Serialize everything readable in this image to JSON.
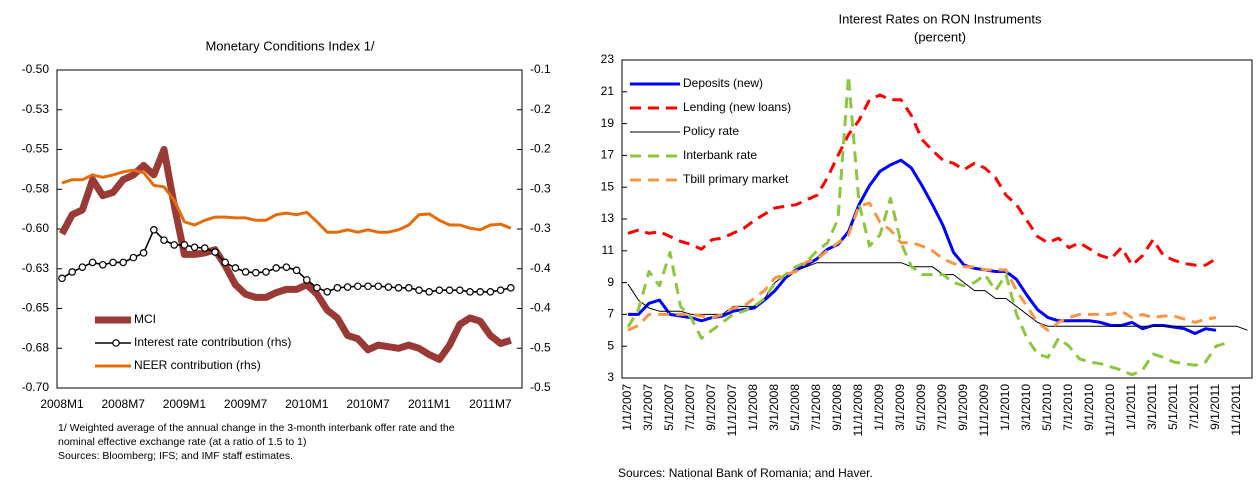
{
  "chart_data": [
    {
      "type": "line",
      "title": "Monetary Conditions Index 1/",
      "categories": [
        "2008M1",
        null,
        null,
        null,
        null,
        null,
        "2008M7",
        null,
        null,
        null,
        null,
        null,
        "2009M1",
        null,
        null,
        null,
        null,
        null,
        "2009M7",
        null,
        null,
        null,
        null,
        null,
        "2010M1",
        null,
        null,
        null,
        null,
        null,
        "2010M7",
        null,
        null,
        null,
        null,
        null,
        "2011M1",
        null,
        null,
        null,
        null,
        null,
        "2011M7",
        null,
        null
      ],
      "ylim": [
        -0.7,
        -0.5
      ],
      "yticks": [
        {
          "value": -0.7,
          "label": "-0.70"
        },
        {
          "value": -0.675,
          "label": "-0.68"
        },
        {
          "value": -0.65,
          "label": "-0.65"
        },
        {
          "value": -0.625,
          "label": "-0.63"
        },
        {
          "value": -0.6,
          "label": "-0.60"
        },
        {
          "value": -0.575,
          "label": "-0.58"
        },
        {
          "value": -0.55,
          "label": "-0.55"
        },
        {
          "value": -0.525,
          "label": "-0.53"
        },
        {
          "value": -0.5,
          "label": "-0.50"
        }
      ],
      "y2lim": [
        -0.5,
        -0.1
      ],
      "y2ticks": [
        -0.5,
        {
          "value": -0.45,
          "label": "-0.5"
        },
        -0.4,
        {
          "value": -0.35,
          "label": "-0.4"
        },
        -0.3,
        {
          "value": -0.25,
          "label": "-0.3"
        },
        -0.2,
        {
          "value": -0.15,
          "label": "-0.2"
        },
        -0.1
      ],
      "grid": false,
      "legend": "lower left",
      "series": [
        {
          "name": "MCI",
          "color": "#9a3a36",
          "style": "thick",
          "values": [
            -0.603,
            -0.591,
            -0.588,
            -0.569,
            -0.579,
            -0.577,
            -0.569,
            -0.566,
            -0.56,
            -0.566,
            -0.55,
            -0.585,
            -0.616,
            -0.616,
            -0.615,
            -0.613,
            -0.623,
            -0.635,
            -0.641,
            -0.643,
            -0.643,
            -0.64,
            -0.638,
            -0.638,
            -0.635,
            -0.641,
            -0.651,
            -0.656,
            -0.667,
            -0.669,
            -0.676,
            -0.673,
            -0.674,
            -0.675,
            -0.673,
            -0.675,
            -0.679,
            -0.682,
            -0.673,
            -0.66,
            -0.656,
            -0.658,
            -0.667,
            -0.672,
            -0.67
          ]
        },
        {
          "name": "Interest rate contribution (rhs)",
          "color": "#000000",
          "style": "markers",
          "axis": "y2",
          "values": [
            -0.362,
            -0.354,
            -0.348,
            -0.342,
            -0.345,
            -0.342,
            -0.342,
            -0.336,
            -0.33,
            -0.301,
            -0.314,
            -0.32,
            -0.32,
            -0.323,
            -0.324,
            -0.329,
            -0.342,
            -0.349,
            -0.354,
            -0.355,
            -0.354,
            -0.349,
            -0.348,
            -0.352,
            -0.364,
            -0.374,
            -0.379,
            -0.374,
            -0.373,
            -0.372,
            -0.372,
            -0.372,
            -0.373,
            -0.374,
            -0.374,
            -0.377,
            -0.379,
            -0.377,
            -0.377,
            -0.377,
            -0.379,
            -0.379,
            -0.379,
            -0.377,
            -0.374
          ]
        },
        {
          "name": "NEER contribution (rhs)",
          "color": "#e46c0a",
          "style": "solid",
          "axis": "y2",
          "values": [
            -0.242,
            -0.238,
            -0.238,
            -0.232,
            -0.235,
            -0.232,
            -0.228,
            -0.226,
            -0.229,
            -0.245,
            -0.247,
            -0.264,
            -0.291,
            -0.295,
            -0.289,
            -0.285,
            -0.285,
            -0.286,
            -0.286,
            -0.289,
            -0.289,
            -0.282,
            -0.28,
            -0.282,
            -0.279,
            -0.291,
            -0.304,
            -0.304,
            -0.301,
            -0.304,
            -0.301,
            -0.304,
            -0.304,
            -0.301,
            -0.295,
            -0.282,
            -0.281,
            -0.289,
            -0.295,
            -0.295,
            -0.299,
            -0.301,
            -0.295,
            -0.294,
            -0.299
          ]
        }
      ],
      "notes": [
        "1/  Weighted  average of the annual change in the 3-month interbank offer rate and the",
        "nominal effective exchange rate (at a ratio of 1.5 to 1)",
        "Sources: Bloomberg; IFS; and IMF staff estimates."
      ]
    },
    {
      "type": "line",
      "title": "Interest Rates on RON Instruments",
      "subtitle": "(percent)",
      "categories": [
        "1/1/2007",
        null,
        "3/1/2007",
        null,
        "5/1/2007",
        null,
        "7/1/2007",
        null,
        "9/1/2007",
        null,
        "11/1/2007",
        null,
        "1/1/2008",
        null,
        "3/1/2008",
        null,
        "5/1/2008",
        null,
        "7/1/2008",
        null,
        "9/1/2008",
        null,
        "11/1/2008",
        null,
        "1/1/2009",
        null,
        "3/1/2009",
        null,
        "5/1/2009",
        null,
        "7/1/2009",
        null,
        "9/1/2009",
        null,
        "11/1/2009",
        null,
        "1/1/2010",
        null,
        "3/1/2010",
        null,
        "5/1/2010",
        null,
        "7/1/2010",
        null,
        "9/1/2010",
        null,
        "11/1/2010",
        null,
        "1/1/2011",
        null,
        "3/1/2011",
        null,
        "5/1/2011",
        null,
        "7/1/2011",
        null,
        "9/1/2011",
        null,
        "11/1/2011",
        null
      ],
      "ylim": [
        3,
        23
      ],
      "yticks": [
        3,
        5,
        7,
        9,
        11,
        13,
        15,
        17,
        19,
        21,
        23
      ],
      "grid": false,
      "legend": "upper left",
      "series": [
        {
          "name": "Deposits (new)",
          "color": "#0000ff",
          "style": "solid",
          "values": [
            7.0,
            7.0,
            7.7,
            7.9,
            7.0,
            6.9,
            6.8,
            6.6,
            6.8,
            6.9,
            7.2,
            7.3,
            7.4,
            7.9,
            8.5,
            9.3,
            9.8,
            10.1,
            10.5,
            11.1,
            11.4,
            12.2,
            13.9,
            15.1,
            16.0,
            16.4,
            16.7,
            16.2,
            15.1,
            13.9,
            12.6,
            10.9,
            10.1,
            9.9,
            9.8,
            9.7,
            9.7,
            9.2,
            8.2,
            7.3,
            6.8,
            6.6,
            6.6,
            6.6,
            6.6,
            6.5,
            6.3,
            6.3,
            6.5,
            6.1,
            6.3,
            6.3,
            6.2,
            6.1,
            5.8,
            6.1,
            6.0,
            null,
            null,
            null
          ]
        },
        {
          "name": "Lending (new loans)",
          "color": "#ff0000",
          "style": "dashed",
          "values": [
            12.1,
            12.3,
            12.1,
            12.2,
            11.9,
            11.6,
            11.4,
            11.1,
            11.7,
            11.8,
            12.1,
            12.4,
            12.9,
            13.3,
            13.7,
            13.8,
            13.9,
            14.2,
            14.5,
            15.6,
            17.0,
            18.3,
            19.2,
            20.5,
            20.8,
            20.5,
            20.5,
            19.5,
            18.0,
            17.3,
            16.7,
            16.5,
            16.1,
            16.5,
            16.2,
            15.6,
            14.5,
            13.9,
            12.9,
            11.9,
            11.5,
            11.8,
            11.2,
            11.5,
            11.1,
            10.7,
            10.5,
            11.2,
            10.1,
            10.7,
            11.7,
            10.7,
            10.4,
            10.2,
            10.1,
            10.1,
            10.5,
            null,
            null,
            null
          ]
        },
        {
          "name": "Policy rate",
          "color": "#000000",
          "style": "thin",
          "values": [
            8.9,
            7.9,
            7.4,
            7.2,
            7.2,
            7.2,
            7.0,
            7.0,
            7.0,
            7.0,
            7.5,
            7.5,
            7.5,
            8.0,
            9.0,
            9.5,
            9.75,
            10.0,
            10.25,
            10.25,
            10.25,
            10.25,
            10.25,
            10.25,
            10.25,
            10.25,
            10.25,
            10.0,
            10.0,
            10.0,
            9.5,
            9.5,
            9.0,
            8.5,
            8.5,
            8.0,
            8.0,
            7.5,
            7.0,
            6.5,
            6.25,
            6.25,
            6.25,
            6.25,
            6.25,
            6.25,
            6.25,
            6.25,
            6.25,
            6.25,
            6.25,
            6.25,
            6.25,
            6.25,
            6.25,
            6.25,
            6.25,
            6.25,
            6.25,
            6.0
          ]
        },
        {
          "name": "Interbank rate",
          "color": "#8dc63f",
          "style": "dashed",
          "values": [
            6.2,
            7.3,
            9.7,
            8.8,
            10.9,
            7.5,
            6.8,
            5.5,
            6.0,
            6.5,
            7.0,
            7.2,
            7.5,
            8.0,
            9.0,
            9.5,
            10.0,
            10.3,
            11.0,
            11.5,
            13.0,
            22.0,
            14.0,
            11.3,
            12.0,
            14.3,
            11.5,
            10.0,
            9.5,
            9.5,
            9.5,
            9.0,
            8.8,
            9.0,
            9.5,
            8.5,
            9.5,
            7.0,
            5.5,
            4.5,
            4.3,
            5.5,
            5.0,
            4.2,
            4.0,
            3.9,
            3.7,
            3.5,
            3.2,
            3.5,
            4.5,
            4.3,
            4.0,
            3.9,
            3.8,
            4.0,
            5.0,
            5.2,
            null,
            null
          ]
        },
        {
          "name": "Tbill primary market",
          "color": "#f79646",
          "style": "dashed",
          "values": [
            6.0,
            6.3,
            7.0,
            7.0,
            7.0,
            7.0,
            7.0,
            6.9,
            6.8,
            7.0,
            7.4,
            7.5,
            8.0,
            8.5,
            9.3,
            9.5,
            9.7,
            10.3,
            10.5,
            11.0,
            11.5,
            12.0,
            13.8,
            14.0,
            12.8,
            12.3,
            11.5,
            11.5,
            11.3,
            11.0,
            10.5,
            10.2,
            10.0,
            10.0,
            9.8,
            9.8,
            9.8,
            8.5,
            7.5,
            6.5,
            6.0,
            6.5,
            6.8,
            7.0,
            7.0,
            7.0,
            7.0,
            7.2,
            6.8,
            7.0,
            6.8,
            6.9,
            6.9,
            6.7,
            6.5,
            6.7,
            6.8,
            null,
            null,
            null
          ]
        }
      ],
      "notes": [
        "Sources: National Bank of Romania; and Haver."
      ]
    }
  ]
}
